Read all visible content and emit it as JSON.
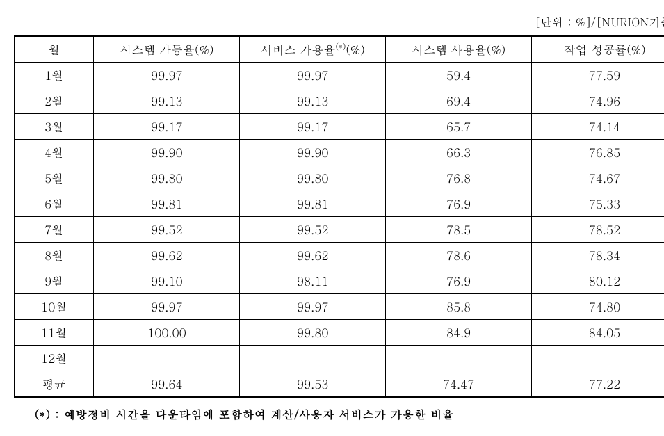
{
  "unit_label": "[단위 : %]/[NURION기준]",
  "columns": {
    "month": "월",
    "uptime": "시스템 가동율(%)",
    "availability_prefix": "서비스 가용율",
    "availability_sup": "(*)",
    "availability_suffix": "(%)",
    "usage": "시스템 사용율(%)",
    "success": "작업 성공률(%)"
  },
  "rows": [
    {
      "month": "1월",
      "uptime": "99.97",
      "availability": "99.97",
      "usage": "59.4",
      "success": "77.59"
    },
    {
      "month": "2월",
      "uptime": "99.13",
      "availability": "99.13",
      "usage": "69.4",
      "success": "74.96"
    },
    {
      "month": "3월",
      "uptime": "99.17",
      "availability": "99.17",
      "usage": "65.7",
      "success": "74.14"
    },
    {
      "month": "4월",
      "uptime": "99.90",
      "availability": "99.90",
      "usage": "66.3",
      "success": "76.85"
    },
    {
      "month": "5월",
      "uptime": "99.80",
      "availability": "99.80",
      "usage": "76.8",
      "success": "74.67"
    },
    {
      "month": "6월",
      "uptime": "99.81",
      "availability": "99.81",
      "usage": "76.9",
      "success": "75.33"
    },
    {
      "month": "7월",
      "uptime": "99.52",
      "availability": "99.52",
      "usage": "78.5",
      "success": "78.52"
    },
    {
      "month": "8월",
      "uptime": "99.62",
      "availability": "99.62",
      "usage": "78.6",
      "success": "78.34"
    },
    {
      "month": "9월",
      "uptime": "99.10",
      "availability": "98.11",
      "usage": "76.9",
      "success": "80.12"
    },
    {
      "month": "10월",
      "uptime": "99.97",
      "availability": "99.97",
      "usage": "85.8",
      "success": "74.80"
    },
    {
      "month": "11월",
      "uptime": "100.00",
      "availability": "99.80",
      "usage": "84.9",
      "success": "84.05"
    },
    {
      "month": "12월",
      "uptime": "",
      "availability": "",
      "usage": "",
      "success": ""
    }
  ],
  "average": {
    "month": "평균",
    "uptime": "99.64",
    "availability": "99.53",
    "usage": "74.47",
    "success": "77.22"
  },
  "footnote": "(*) : 예방정비 시간을 다운타임에 포함하여 계산/사용자 서비스가 가용한 비율",
  "styles": {
    "background_color": "#ffffff",
    "text_color": "#000000",
    "border_color": "#000000",
    "header_font_size": 17,
    "body_font_size": 17,
    "unit_label_font_size": 16,
    "footnote_font_size": 16
  }
}
